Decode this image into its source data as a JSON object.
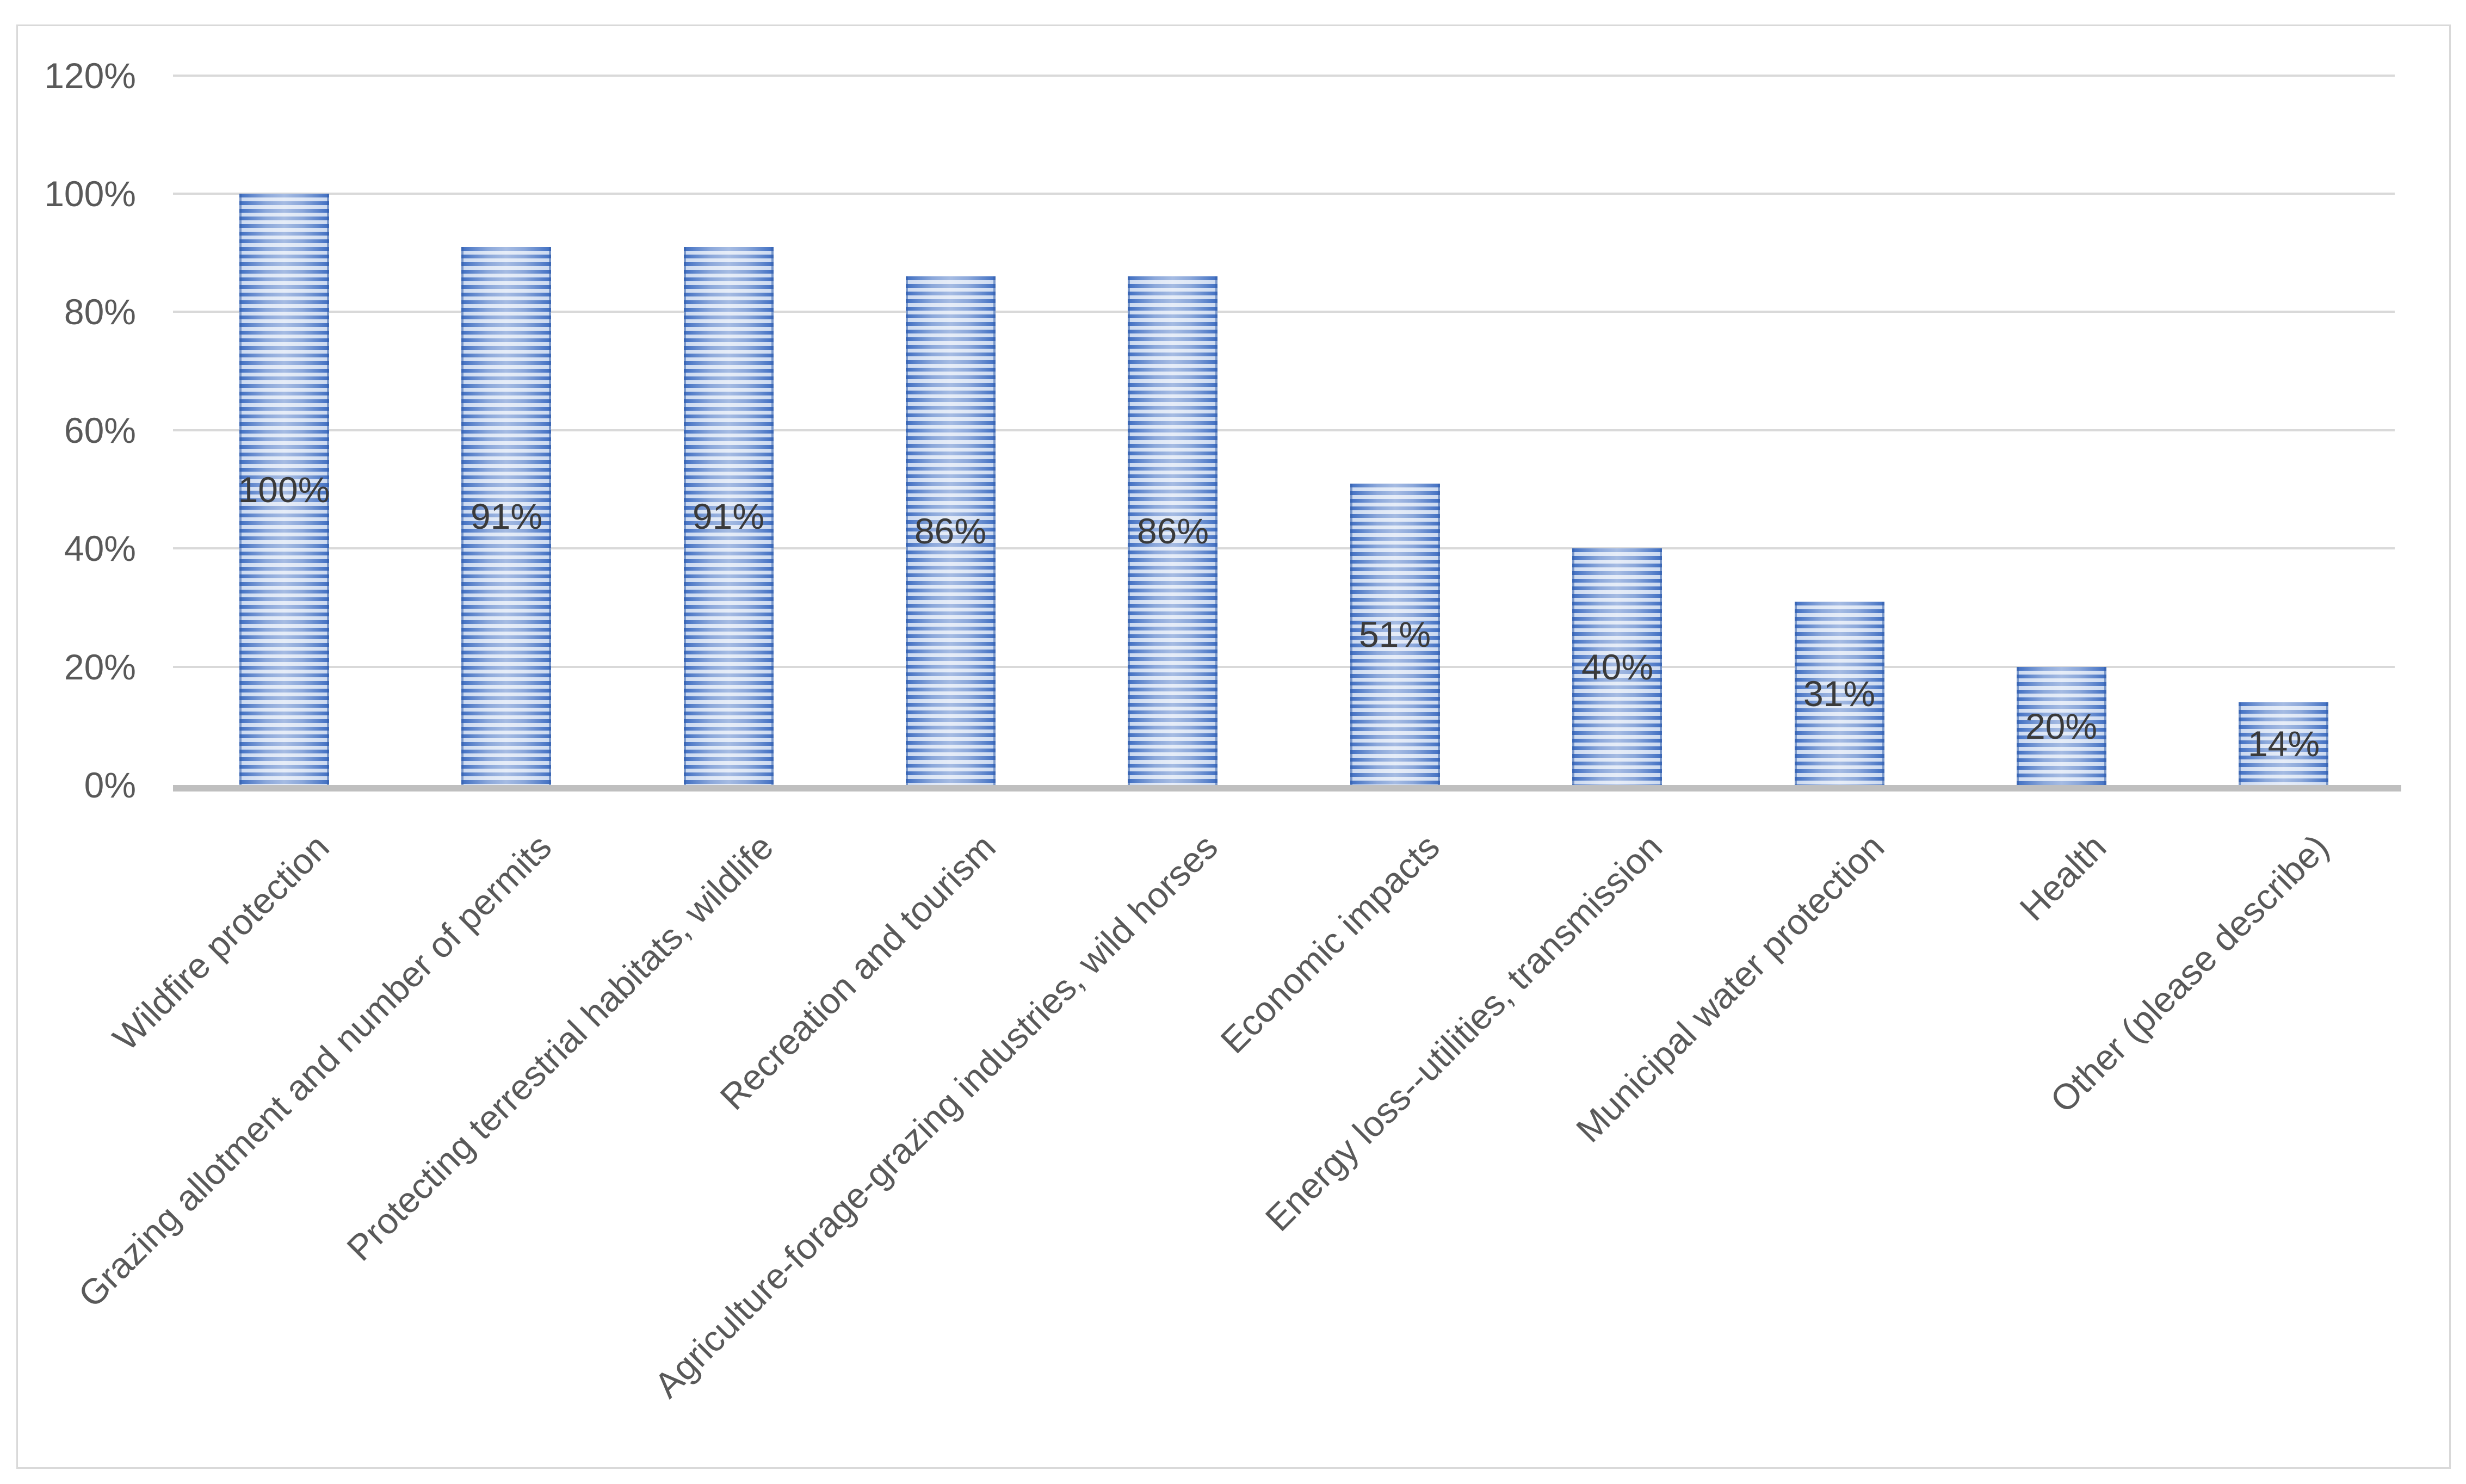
{
  "chart_data": {
    "type": "bar",
    "title": "",
    "xlabel": "",
    "ylabel": "",
    "categories": [
      "Wildfire protection",
      "Grazing allotment and number of permits",
      "Protecting terrestrial habitats, wildlife",
      "Recreation and tourism",
      "Agriculture-forage-grazing industries, wild horses",
      "Economic impacts",
      "Energy loss--utilities, transmission",
      "Municipal water protection",
      "Health",
      "Other (please describe)"
    ],
    "values": [
      100,
      91,
      91,
      86,
      86,
      51,
      40,
      31,
      20,
      14
    ],
    "value_labels": [
      "100%",
      "91%",
      "91%",
      "86%",
      "86%",
      "51%",
      "40%",
      "31%",
      "20%",
      "14%"
    ],
    "value_label_position": "inside-center",
    "y_ticks": [
      "0%",
      "20%",
      "40%",
      "60%",
      "80%",
      "100%",
      "120%"
    ],
    "y_tick_values": [
      0,
      20,
      40,
      60,
      80,
      100,
      120
    ],
    "ylim": [
      0,
      120
    ],
    "grid": true,
    "legend": "none",
    "bar_fill_pattern": "horizontal-stripes",
    "category_label_rotation_deg": 45,
    "colors": {
      "bar_stripe": "#4472C4",
      "bar_stripe_light": "#CBD9F0",
      "gridline": "#D9D9D9",
      "axis_line": "#BFBFBF",
      "tick_label_text": "#595959",
      "category_label_text": "#595959",
      "data_label_text": "#3A3A3A",
      "frame_border": "#D9D9D9",
      "background": "#FFFFFF"
    }
  }
}
